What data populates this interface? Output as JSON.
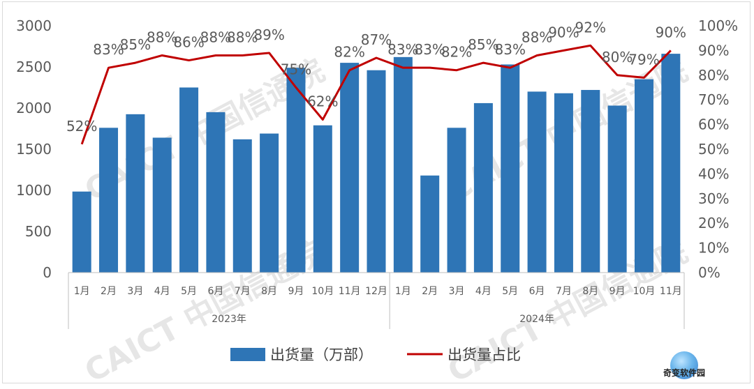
{
  "chart_data": {
    "type": "bar",
    "categories": [
      "1月",
      "2月",
      "3月",
      "4月",
      "5月",
      "6月",
      "7月",
      "8月",
      "9月",
      "10月",
      "11月",
      "12月",
      "1月",
      "2月",
      "3月",
      "4月",
      "5月",
      "6月",
      "7月",
      "8月",
      "9月",
      "10月",
      "11月"
    ],
    "groups": [
      {
        "label": "2023年",
        "count": 12
      },
      {
        "label": "2024年",
        "count": 11
      }
    ],
    "series": [
      {
        "name": "出货量（万部）",
        "type": "bar",
        "axis": "left",
        "color": "#2e75b6",
        "values": [
          985,
          1760,
          1925,
          1640,
          2250,
          1950,
          1620,
          1690,
          2490,
          1790,
          2550,
          2460,
          2620,
          1180,
          1760,
          2060,
          2530,
          2200,
          2180,
          2220,
          2030,
          2350,
          2660
        ]
      },
      {
        "name": "出货量占比",
        "type": "line",
        "axis": "right",
        "color": "#c00000",
        "values": [
          52,
          83,
          85,
          88,
          86,
          88,
          88,
          89,
          75,
          62,
          82,
          87,
          83,
          83,
          82,
          85,
          83,
          88,
          90,
          92,
          80,
          79,
          90
        ],
        "labels": [
          "52%",
          "83%",
          "85%",
          "88%",
          "86%",
          "88%",
          "88%",
          "89%",
          "75%",
          "62%",
          "82%",
          "87%",
          "83%",
          "83%",
          "82%",
          "85%",
          "83%",
          "88%",
          "90%",
          "92%",
          "80%",
          "79%",
          "90%"
        ]
      }
    ],
    "y_left": {
      "min": 0,
      "max": 3000,
      "ticks": [
        "0",
        "500",
        "1000",
        "1500",
        "2000",
        "2500",
        "3000"
      ]
    },
    "y_right": {
      "min": 0,
      "max": 100,
      "ticks": [
        "0%",
        "10%",
        "20%",
        "30%",
        "40%",
        "50%",
        "60%",
        "70%",
        "80%",
        "90%",
        "100%"
      ]
    },
    "legend_position": "bottom",
    "grid": false
  },
  "watermark": {
    "text": "CAICT 中国信通院"
  },
  "brand": {
    "text": "奇变软件园",
    "accent": "#1e88e5"
  }
}
